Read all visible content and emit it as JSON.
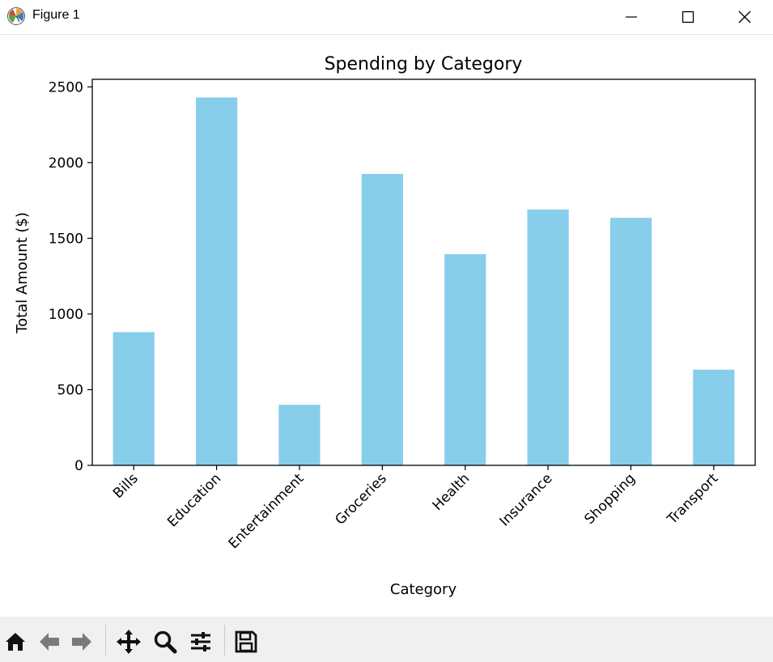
{
  "window": {
    "title": "Figure 1",
    "minimize_icon": "minimize-icon",
    "maximize_icon": "maximize-icon",
    "close_icon": "close-icon"
  },
  "toolbar": {
    "icons": [
      "home-icon",
      "back-arrow-icon",
      "forward-arrow-icon",
      "pan-move-icon",
      "zoom-magnifier-icon",
      "configure-subplots-icon",
      "save-floppy-icon"
    ]
  },
  "colors": {
    "bar": "#87ceeb",
    "axis": "#000000",
    "toolbar_bg": "#f0f0f0"
  },
  "chart_data": {
    "type": "bar",
    "title": "Spending by Category",
    "xlabel": "Category",
    "ylabel": "Total Amount ($)",
    "categories": [
      "Bills",
      "Education",
      "Entertainment",
      "Groceries",
      "Health",
      "Insurance",
      "Shopping",
      "Transport"
    ],
    "values": [
      880,
      2430,
      400,
      1925,
      1395,
      1690,
      1635,
      632
    ],
    "ylim": [
      0,
      2550
    ],
    "yticks": [
      0,
      500,
      1000,
      1500,
      2000,
      2500
    ],
    "ytick_labels": [
      "0",
      "500",
      "1000",
      "1500",
      "2000",
      "2500"
    ],
    "grid": false,
    "legend": "none",
    "xtick_rotation": 45
  }
}
